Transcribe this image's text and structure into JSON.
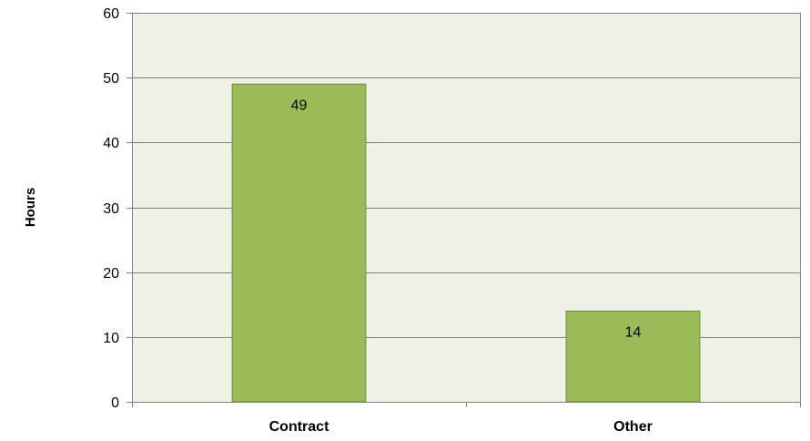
{
  "chart_data": {
    "type": "bar",
    "categories": [
      "Contract",
      "Other"
    ],
    "values": [
      49,
      14
    ],
    "data_labels": [
      "49",
      "14"
    ],
    "title": "",
    "xlabel": "",
    "ylabel": "Hours",
    "ylim": [
      0,
      60
    ],
    "yticks": [
      0,
      10,
      20,
      30,
      40,
      50,
      60
    ],
    "grid": true,
    "legend": "none",
    "colors": {
      "plot_background": "#eef1e6",
      "bar_fill": "#9bbb59",
      "bar_stroke": "#6f8a36",
      "gridline": "#808080",
      "axis": "#808080"
    }
  }
}
